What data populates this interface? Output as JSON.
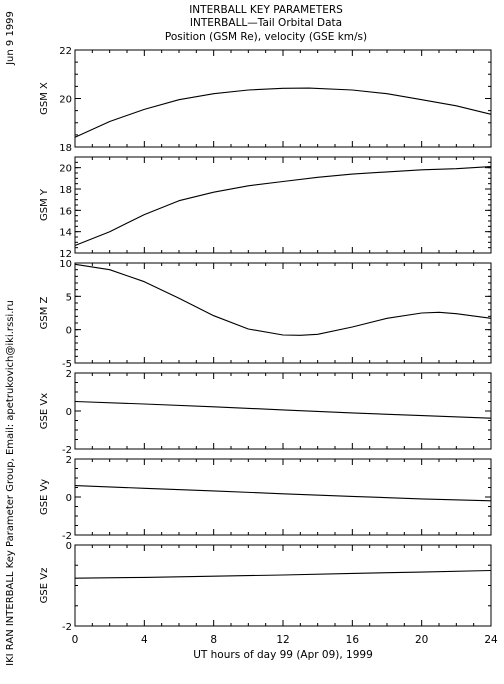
{
  "header": {
    "title_lines": [
      "INTERBALL KEY PARAMETERS",
      "INTERBALL—Tail Orbital Data",
      "Position (GSM Re), velocity (GSE km/s)"
    ],
    "date_label": "Jun  9 1999",
    "credit": "IKI RAN INTERBALL Key Parameter Group, Email: apetrukovich@iki.rssi.ru"
  },
  "chart_data": {
    "type": "line",
    "xlabel": "UT hours of day  99 (Apr 09), 1999",
    "xlim": [
      0,
      24
    ],
    "xticks": [
      0,
      4,
      8,
      12,
      16,
      20,
      24
    ],
    "panels": [
      {
        "ylabel": "GSM X",
        "ylim": [
          18,
          22
        ],
        "yticks": [
          18,
          20,
          22
        ],
        "series": [
          {
            "x": [
              0,
              2,
              4,
              6,
              8,
              10,
              12,
              13.5,
              16,
              18,
              20,
              22,
              24
            ],
            "y": [
              18.4,
              19.05,
              19.55,
              19.95,
              20.2,
              20.35,
              20.42,
              20.43,
              20.35,
              20.2,
              19.95,
              19.7,
              19.35
            ]
          }
        ]
      },
      {
        "ylabel": "GSM Y",
        "ylim": [
          12,
          21
        ],
        "yticks": [
          12,
          14,
          16,
          18,
          20
        ],
        "series": [
          {
            "x": [
              0,
              2,
              4,
              6,
              8,
              10,
              12,
              14,
              16,
              18,
              20,
              22,
              24
            ],
            "y": [
              12.7,
              14.0,
              15.6,
              16.9,
              17.7,
              18.3,
              18.7,
              19.1,
              19.4,
              19.6,
              19.8,
              19.9,
              20.1
            ]
          }
        ]
      },
      {
        "ylabel": "GSM Z",
        "ylim": [
          -5,
          10
        ],
        "yticks": [
          -5,
          0,
          5,
          10
        ],
        "series": [
          {
            "x": [
              0,
              2,
              4,
              6,
              8,
              10,
              12,
              13,
              14,
              16,
              18,
              20,
              21,
              22,
              24
            ],
            "y": [
              9.8,
              9.0,
              7.2,
              4.7,
              2.1,
              0.1,
              -0.8,
              -0.85,
              -0.7,
              0.4,
              1.7,
              2.5,
              2.6,
              2.4,
              1.7
            ]
          }
        ]
      },
      {
        "ylabel": "GSE Vx",
        "ylim": [
          -2,
          2
        ],
        "yticks": [
          -2,
          0,
          2
        ],
        "series": [
          {
            "x": [
              0,
              4,
              8,
              12,
              16,
              20,
              24
            ],
            "y": [
              0.5,
              0.37,
              0.22,
              0.06,
              -0.1,
              -0.24,
              -0.38
            ]
          }
        ]
      },
      {
        "ylabel": "GSE Vy",
        "ylim": [
          -2,
          2
        ],
        "yticks": [
          -2,
          0,
          2
        ],
        "series": [
          {
            "x": [
              0,
              4,
              8,
              12,
              16,
              20,
              24
            ],
            "y": [
              0.6,
              0.46,
              0.32,
              0.17,
              0.03,
              -0.1,
              -0.2
            ]
          }
        ]
      },
      {
        "ylabel": "GSE Vz",
        "ylim": [
          -2,
          0
        ],
        "yticks": [
          -2,
          0
        ],
        "series": [
          {
            "x": [
              0,
              4,
              8,
              12,
              16,
              20,
              24
            ],
            "y": [
              -0.82,
              -0.8,
              -0.77,
              -0.74,
              -0.7,
              -0.67,
              -0.63
            ]
          }
        ]
      }
    ]
  }
}
